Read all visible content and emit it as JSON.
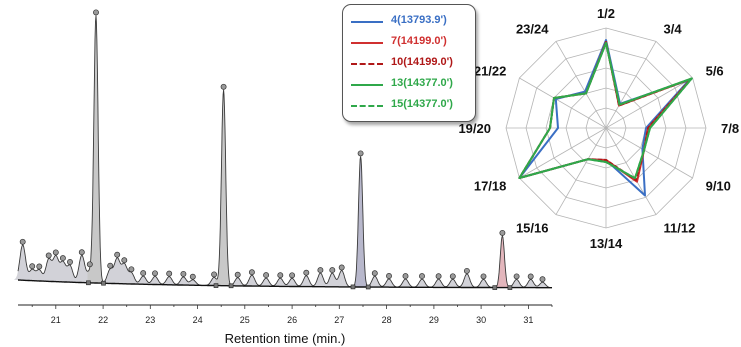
{
  "chart_data": [
    {
      "type": "line",
      "subtype": "chromatogram",
      "xlabel": "Retention time (min.)",
      "ylabel": "",
      "xlim": [
        20.2,
        31.5
      ],
      "x_ticks": [
        "21",
        "22",
        "23",
        "24",
        "25",
        "26",
        "27",
        "28",
        "29",
        "30",
        "31"
      ],
      "x_tick_values": [
        21,
        22,
        23,
        24,
        25,
        26,
        27,
        28,
        29,
        30,
        31
      ],
      "y_relative_max": 100,
      "grid": false,
      "major_peaks": [
        {
          "rt": 21.85,
          "height": 98,
          "fill": "#c8c8c8"
        },
        {
          "rt": 24.55,
          "height": 72,
          "fill": "#c8c8c8"
        },
        {
          "rt": 27.45,
          "height": 48,
          "fill": "#b8b8cc"
        },
        {
          "rt": 30.45,
          "height": 19,
          "fill": "#e3b6bc"
        }
      ],
      "minor_peaks": [
        {
          "rt": 20.3,
          "height": 13
        },
        {
          "rt": 20.5,
          "height": 4
        },
        {
          "rt": 20.65,
          "height": 4
        },
        {
          "rt": 20.85,
          "height": 8
        },
        {
          "rt": 21.0,
          "height": 9
        },
        {
          "rt": 21.15,
          "height": 7
        },
        {
          "rt": 21.3,
          "height": 6
        },
        {
          "rt": 21.55,
          "height": 10
        },
        {
          "rt": 21.72,
          "height": 4
        },
        {
          "rt": 22.15,
          "height": 5
        },
        {
          "rt": 22.3,
          "height": 9
        },
        {
          "rt": 22.45,
          "height": 7
        },
        {
          "rt": 22.6,
          "height": 4
        },
        {
          "rt": 22.85,
          "height": 3
        },
        {
          "rt": 23.1,
          "height": 3
        },
        {
          "rt": 23.4,
          "height": 3
        },
        {
          "rt": 23.7,
          "height": 3
        },
        {
          "rt": 23.9,
          "height": 2
        },
        {
          "rt": 24.35,
          "height": 3
        },
        {
          "rt": 24.85,
          "height": 3
        },
        {
          "rt": 25.15,
          "height": 4
        },
        {
          "rt": 25.45,
          "height": 3
        },
        {
          "rt": 25.75,
          "height": 3
        },
        {
          "rt": 26.0,
          "height": 3
        },
        {
          "rt": 26.3,
          "height": 4
        },
        {
          "rt": 26.6,
          "height": 5
        },
        {
          "rt": 26.85,
          "height": 5
        },
        {
          "rt": 27.05,
          "height": 6
        },
        {
          "rt": 27.75,
          "height": 4
        },
        {
          "rt": 28.05,
          "height": 3
        },
        {
          "rt": 28.4,
          "height": 3
        },
        {
          "rt": 28.75,
          "height": 3
        },
        {
          "rt": 29.1,
          "height": 3
        },
        {
          "rt": 29.4,
          "height": 3
        },
        {
          "rt": 29.7,
          "height": 5
        },
        {
          "rt": 30.05,
          "height": 3
        },
        {
          "rt": 30.75,
          "height": 3
        },
        {
          "rt": 31.05,
          "height": 3
        },
        {
          "rt": 31.3,
          "height": 2
        }
      ]
    },
    {
      "type": "radar",
      "categories": [
        "1/2",
        "3/4",
        "5/6",
        "7/8",
        "9/10",
        "11/12",
        "13/14",
        "15/16",
        "17/18",
        "19/20",
        "21/22",
        "23/24"
      ],
      "rlim": [
        0,
        100
      ],
      "grid": true,
      "legend_position": "top-left",
      "series": [
        {
          "name": "4(13793.9')",
          "color": "#3a6fc4",
          "dash": false,
          "values": [
            88,
            28,
            96,
            40,
            42,
            78,
            32,
            36,
            100,
            48,
            58,
            42
          ]
        },
        {
          "name": "7(14199.0')",
          "color": "#d03030",
          "dash": false,
          "values": [
            86,
            26,
            98,
            42,
            44,
            62,
            32,
            36,
            100,
            56,
            60,
            40
          ]
        },
        {
          "name": "10(14199.0')",
          "color": "#b01818",
          "dash": true,
          "values": [
            86,
            26,
            98,
            42,
            44,
            60,
            32,
            36,
            100,
            56,
            60,
            40
          ]
        },
        {
          "name": "13(14377.0')",
          "color": "#2fa84a",
          "dash": false,
          "values": [
            85,
            27,
            99,
            44,
            44,
            58,
            34,
            36,
            100,
            56,
            60,
            40
          ]
        },
        {
          "name": "15(14377.0')",
          "color": "#2fa84a",
          "dash": true,
          "values": [
            85,
            27,
            99,
            44,
            44,
            58,
            34,
            36,
            100,
            56,
            60,
            40
          ]
        }
      ]
    }
  ]
}
